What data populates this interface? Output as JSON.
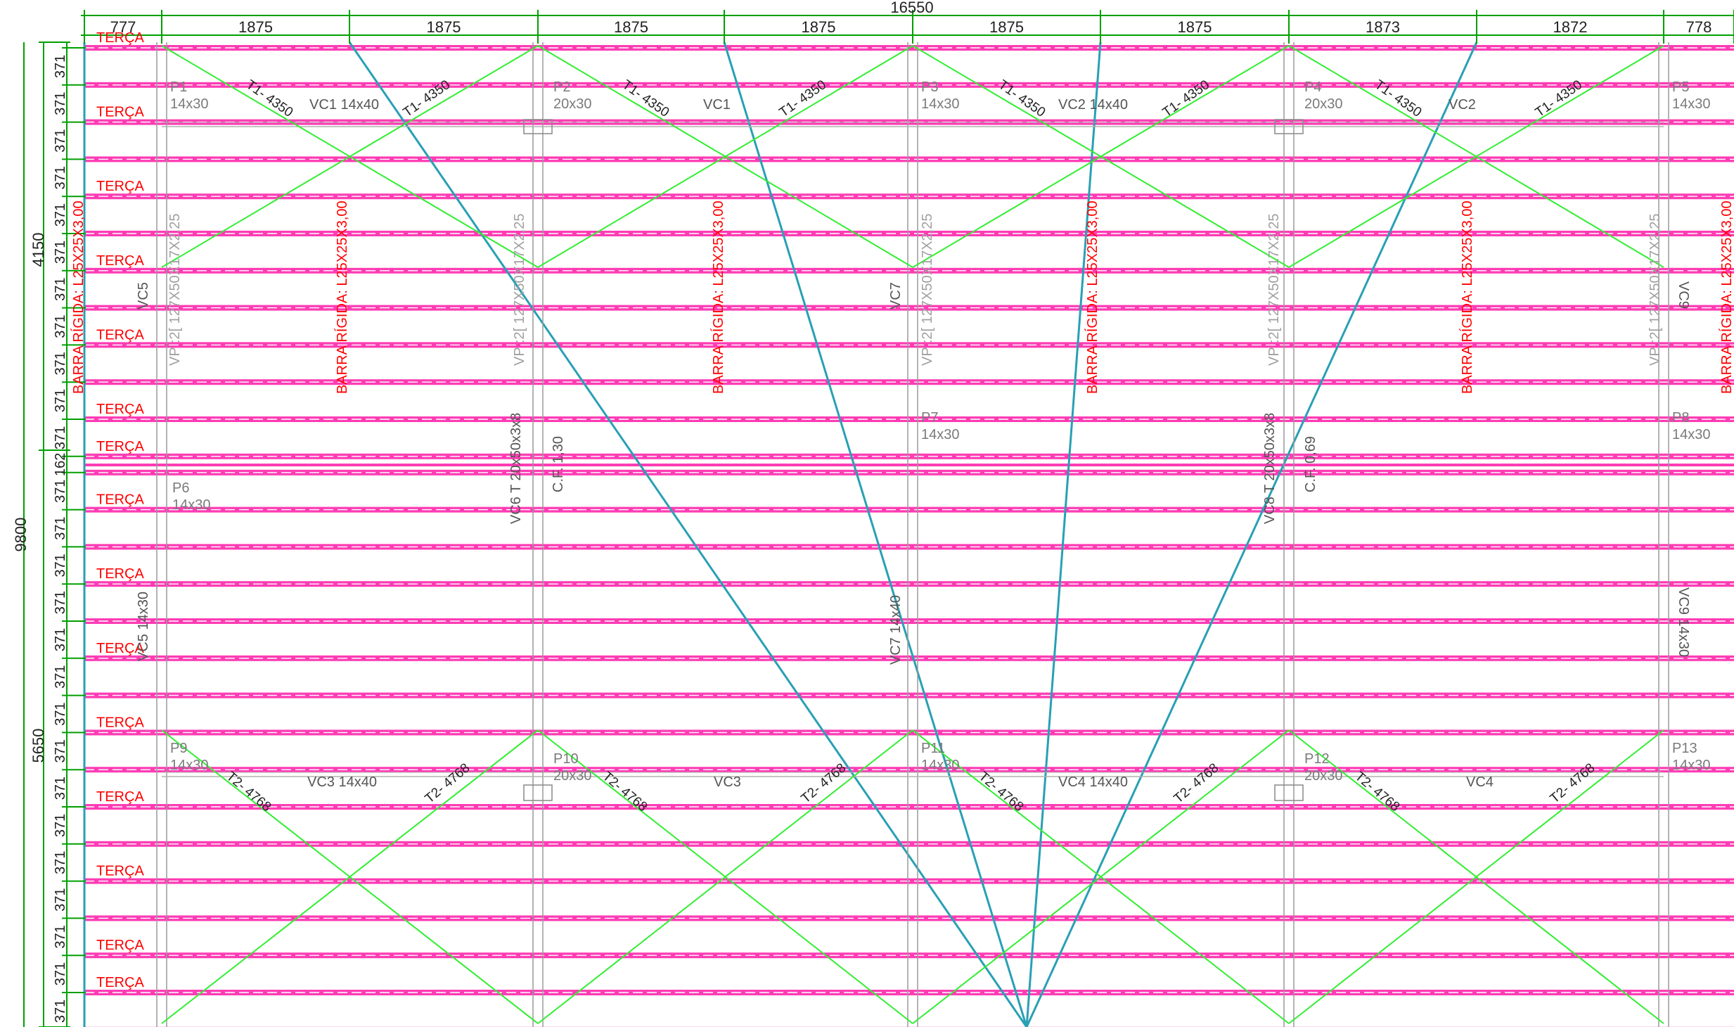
{
  "colors": {
    "background": "#ffffff",
    "dimension": "#00a000",
    "purlin": "#ff3cb4",
    "purlin_edge": "#ffffff",
    "label_red": "#ff0000",
    "bracing": "#33ee33",
    "column_text": "#7a7a7a",
    "axis_line": "#28a0b4",
    "text_dark": "#222222"
  },
  "top_dimensions": {
    "overall": "16550",
    "bays": [
      "777",
      "1875",
      "1875",
      "1875",
      "1875",
      "1875",
      "1875",
      "1873",
      "1872",
      "778"
    ]
  },
  "left_dimensions": {
    "overall": "9800",
    "groups": [
      "4150",
      "5650"
    ],
    "purlin_spacing": [
      "371",
      "371",
      "371",
      "371",
      "371",
      "371",
      "371",
      "371",
      "371",
      "371",
      "371",
      "162",
      "371",
      "371",
      "371",
      "371",
      "371",
      "371",
      "371",
      "371",
      "371",
      "371",
      "371",
      "371",
      "371",
      "371",
      "371"
    ]
  },
  "purlin_label": "TERÇA",
  "rigid_bar_label": "BARRA RÍGIDA: L25X25X3,00",
  "brace_labels": {
    "t1": "T1- 4350",
    "t2": "T2- 4768"
  },
  "columns": [
    {
      "name": "P1",
      "size": "14x30"
    },
    {
      "name": "P2",
      "size": "20x30"
    },
    {
      "name": "P3",
      "size": "14x30"
    },
    {
      "name": "P4",
      "size": "20x30"
    },
    {
      "name": "P5",
      "size": "14x30"
    },
    {
      "name": "P6",
      "size": "14x30"
    },
    {
      "name": "P7",
      "size": "14x30"
    },
    {
      "name": "P8",
      "size": "14x30"
    },
    {
      "name": "P9",
      "size": "14x30"
    },
    {
      "name": "P10",
      "size": "20x30"
    },
    {
      "name": "P11",
      "size": "14x30"
    },
    {
      "name": "P12",
      "size": "20x30"
    },
    {
      "name": "P13",
      "size": "14x30"
    }
  ],
  "beams_top": [
    "VC1 14x40",
    "VC1",
    "VC2 14x40",
    "VC2"
  ],
  "beams_bottom": [
    "VC3 14x40",
    "VC3",
    "VC4 14x40",
    "VC4"
  ],
  "vertical_labels": {
    "vc5": "VC5",
    "vc5_size": "VC5 14x30",
    "vc6": "VC6 T 20x50x3x8",
    "vc7": "VC7",
    "vc7_size": "VC7 14x40",
    "vc8": "VC8 T 20x50x3x8",
    "vc9": "VC9",
    "vc9_size": "VC9 14x30",
    "vp": "VP :2[ 127X50X17X2,25",
    "cf1": "C.F. 1,30",
    "cf2": "C.F. 0,69"
  }
}
